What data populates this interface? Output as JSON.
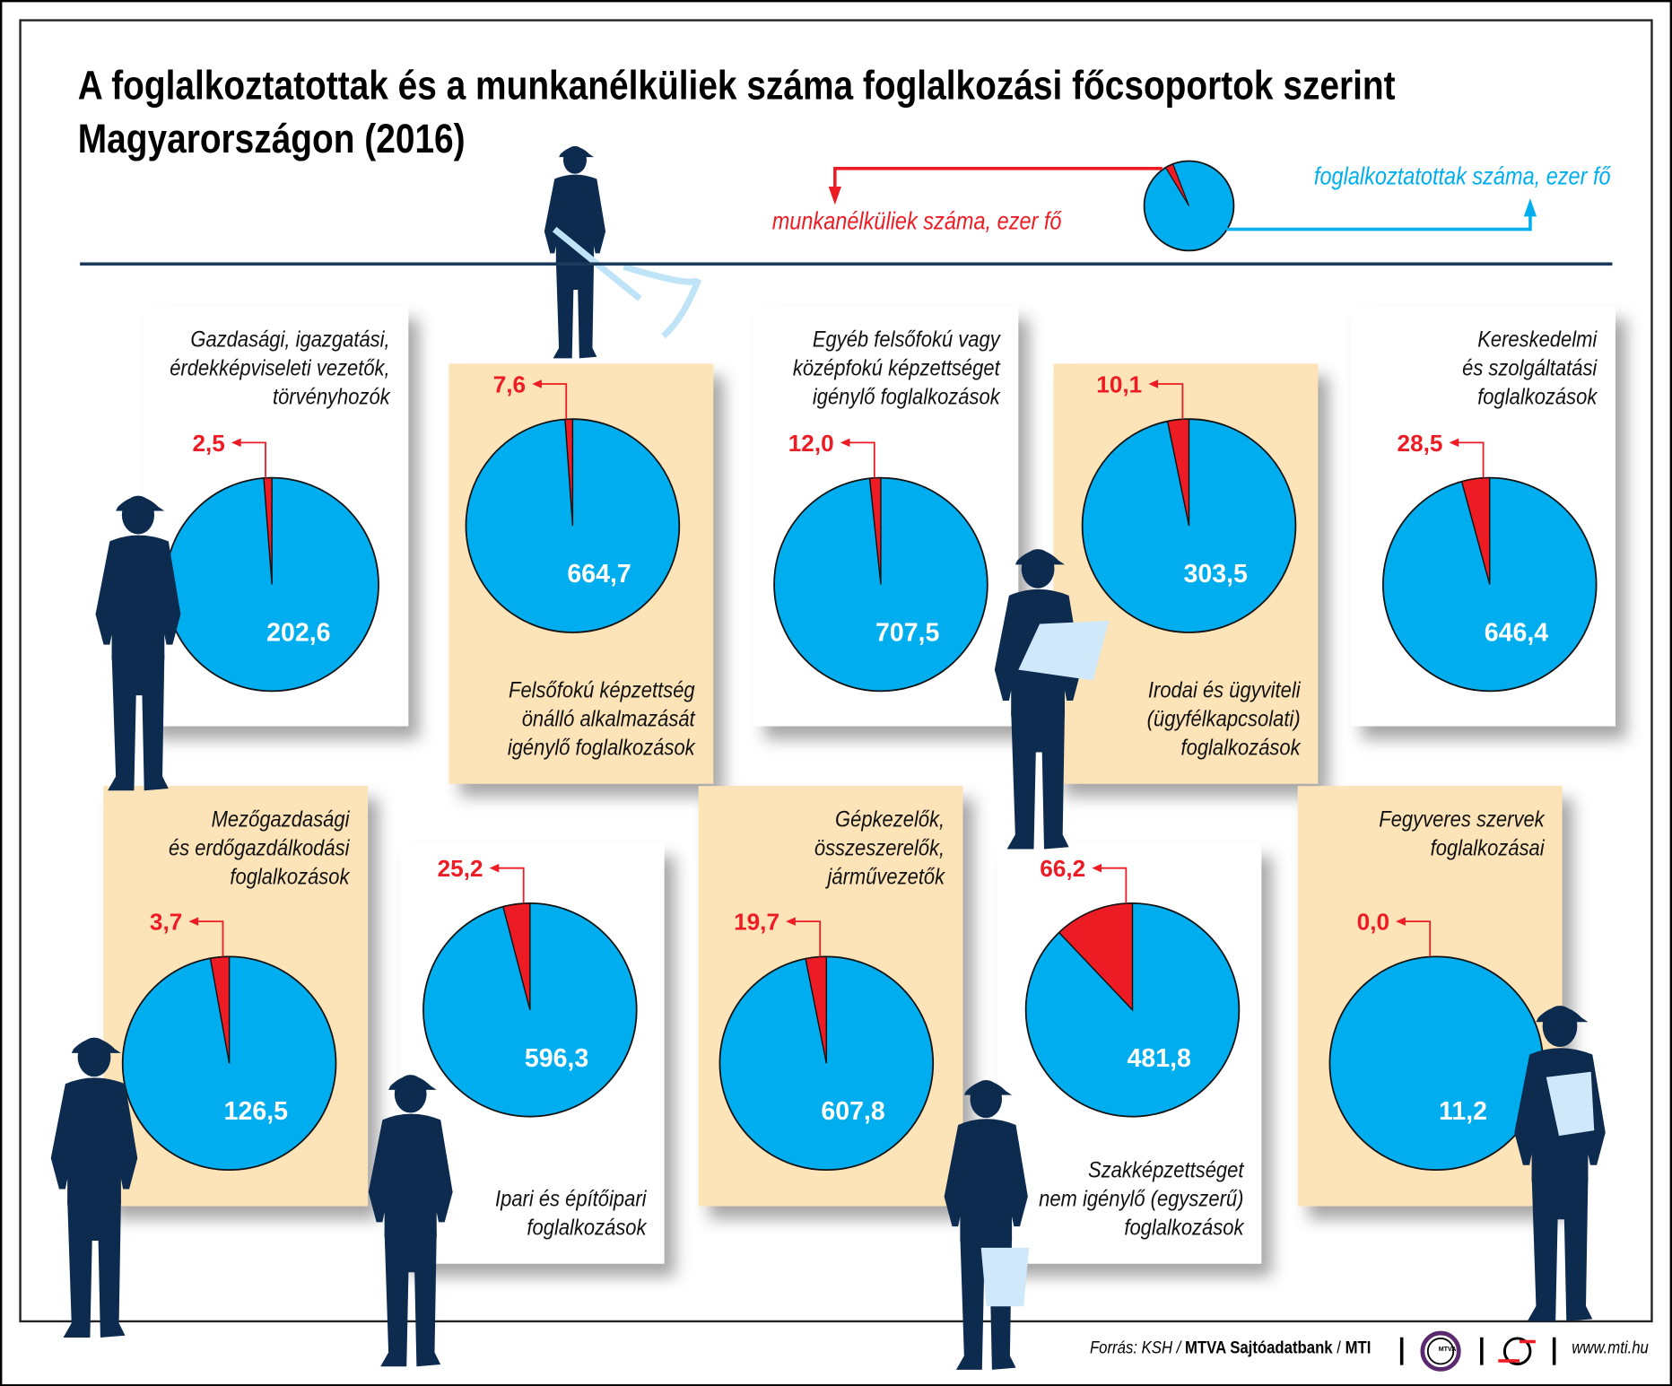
{
  "title_line1": "A foglalkoztatottak és a munkanélküliek száma foglalkozási főcsoportok szerint",
  "title_line2": "Magyarországon (2016)",
  "legend": {
    "unemployed": "munkanélküliek száma, ezer fő",
    "employed": "foglalkoztatottak száma, ezer fő"
  },
  "colors": {
    "employed": "#00aeef",
    "unemployed": "#ed1c24",
    "panel_white": "#ffffff",
    "panel_beige": "#fde3b8",
    "silhouette": "#0d2b4e"
  },
  "chart_data": {
    "type": "pie",
    "title": "A foglalkoztatottak és a munkanélküliek száma foglalkozási főcsoportok szerint Magyarországon (2016)",
    "unit": "ezer fő",
    "series_names": [
      "munkanélküliek száma, ezer fő",
      "foglalkoztatottak száma, ezer fő"
    ],
    "pies": [
      {
        "label": [
          "Gazdasági, igazgatási,",
          "érdekképviseleti vezetők,",
          "törvényhozók"
        ],
        "unemployed": 2.5,
        "employed": 202.6,
        "unemployed_text": "2,5",
        "employed_text": "202,6"
      },
      {
        "label": [
          "Felsőfokú képzettség",
          "önálló alkalmazását",
          "igénylő foglalkozások"
        ],
        "unemployed": 7.6,
        "employed": 664.7,
        "unemployed_text": "7,6",
        "employed_text": "664,7"
      },
      {
        "label": [
          "Egyéb felsőfokú vagy",
          "középfokú képzettséget",
          "igénylő foglalkozások"
        ],
        "unemployed": 12.0,
        "employed": 707.5,
        "unemployed_text": "12,0",
        "employed_text": "707,5"
      },
      {
        "label": [
          "Irodai és ügyviteli",
          "(ügyfélkapcsolati)",
          "foglalkozások"
        ],
        "unemployed": 10.1,
        "employed": 303.5,
        "unemployed_text": "10,1",
        "employed_text": "303,5"
      },
      {
        "label": [
          "Kereskedelmi",
          "és szolgáltatási",
          "foglalkozások"
        ],
        "unemployed": 28.5,
        "employed": 646.4,
        "unemployed_text": "28,5",
        "employed_text": "646,4"
      },
      {
        "label": [
          "Mezőgazdasági",
          "és erdőgazdálkodási",
          "foglalkozások"
        ],
        "unemployed": 3.7,
        "employed": 126.5,
        "unemployed_text": "3,7",
        "employed_text": "126,5"
      },
      {
        "label": [
          "Ipari és építőipari",
          "foglalkozások"
        ],
        "unemployed": 25.2,
        "employed": 596.3,
        "unemployed_text": "25,2",
        "employed_text": "596,3"
      },
      {
        "label": [
          "Gépkezelők,",
          "összeszerelők,",
          "járművezetők"
        ],
        "unemployed": 19.7,
        "employed": 607.8,
        "unemployed_text": "19,7",
        "employed_text": "607,8"
      },
      {
        "label": [
          "Szakképzettséget",
          "nem igénylő (egyszerű)",
          "foglalkozások"
        ],
        "unemployed": 66.2,
        "employed": 481.8,
        "unemployed_text": "66,2",
        "employed_text": "481,8"
      },
      {
        "label": [
          "Fegyveres szervek",
          "foglalkozásai"
        ],
        "unemployed": 0.0,
        "employed": 11.2,
        "unemployed_text": "0,0",
        "employed_text": "11,2"
      }
    ]
  },
  "footer": {
    "source_prefix": "Forrás: KSH / ",
    "source_bold": "MTVA Sajtóadatbank",
    "source_sep": " / ",
    "source_mti": "MTI",
    "logo_mtva": "MTVA",
    "url": "www.mti.hu"
  }
}
